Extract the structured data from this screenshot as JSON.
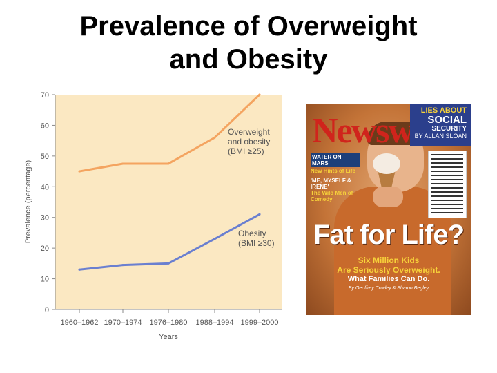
{
  "slide": {
    "title_line1": "Prevalence of Overweight",
    "title_line2": "and Obesity"
  },
  "chart_data": {
    "type": "line",
    "title": "",
    "xlabel": "Years",
    "ylabel": "Prevalence (percentage)",
    "ylim": [
      0,
      70
    ],
    "yticks": [
      0,
      10,
      20,
      30,
      40,
      50,
      60,
      70
    ],
    "categories": [
      "1960–1962",
      "1970–1974",
      "1976–1980",
      "1988–1994",
      "1999–2000"
    ],
    "series": [
      {
        "name": "Overweight and obesity (BMI ≥25)",
        "label_line1": "Overweight",
        "label_line2": "and obesity",
        "label_line3": "(BMI ≥25)",
        "values": [
          45,
          47.5,
          47.5,
          56,
          70
        ]
      },
      {
        "name": "Obesity (BMI ≥30)",
        "label_line1": "Obesity",
        "label_line2": "(BMI ≥30)",
        "values": [
          13,
          14.5,
          15,
          23,
          31
        ]
      }
    ],
    "colors": {
      "background": "#fbe8c2",
      "overweight": "#f4a460",
      "obesity": "#6a7fd0",
      "axis": "#8a8a8a"
    }
  },
  "cover": {
    "masthead": "Newsweek",
    "banner_top": "LIES ABOUT",
    "banner_main": "SOCIAL",
    "banner_sub": "SECURITY",
    "banner_by": "BY ALLAN SLOAN",
    "teaser1": "WATER ON MARS",
    "teaser2": "New Hints of Life",
    "teaser3": "'ME, MYSELF & IRENE'",
    "teaser4": "The Wild Men of Comedy",
    "headline": "Fat for Life?",
    "sub_line1": "Six Million Kids",
    "sub_line2": "Are Seriously Overweight.",
    "sub2": "What Families Can Do.",
    "byline": "By Geoffrey Cowley & Sharon Begley"
  }
}
